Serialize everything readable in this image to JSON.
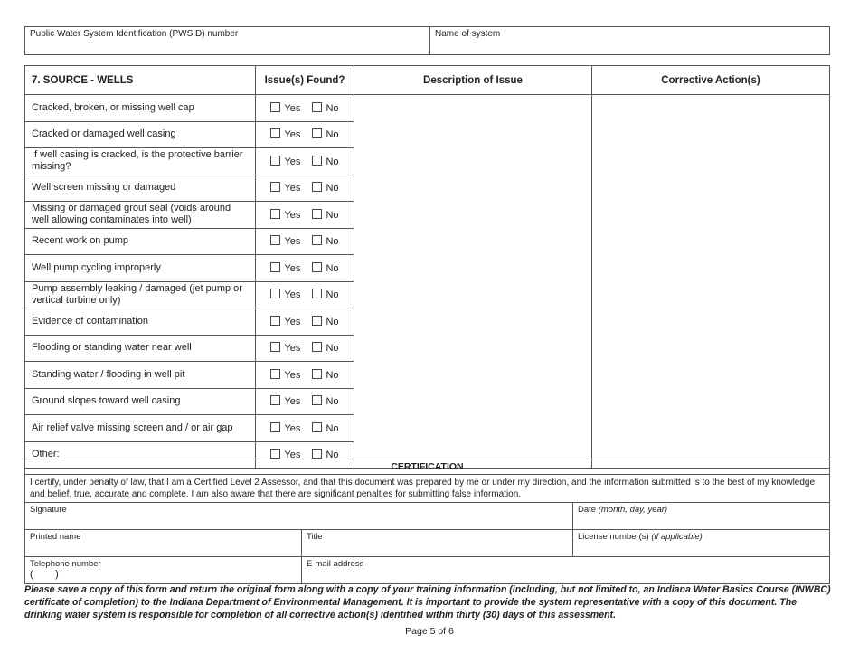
{
  "header_fields": {
    "pwsid_label": "Public Water System Identification (PWSID) number",
    "system_name_label": "Name of system"
  },
  "section": {
    "title": "7.   SOURCE - WELLS",
    "columns": {
      "issues": "Issue(s) Found?",
      "description": "Description of Issue",
      "corrective": "Corrective Action(s)"
    },
    "yes_label": "Yes",
    "no_label": "No",
    "items": [
      "Cracked, broken, or missing well cap",
      "Cracked or damaged well casing",
      "If well casing is cracked, is the protective barrier missing?",
      "Well screen missing or damaged",
      "Missing or damaged grout seal (voids around well allowing contaminates into well)",
      "Recent work on pump",
      "Well pump cycling improperly",
      "Pump assembly leaking / damaged (jet pump or vertical turbine only)",
      "Evidence of contamination",
      "Flooding or standing water near well",
      "Standing water / flooding in well pit",
      "Ground slopes toward well casing",
      "Air relief valve missing screen and / or air gap",
      "Other:"
    ]
  },
  "certification": {
    "title": "CERTIFICATION",
    "statement": "I certify, under penalty of law, that I am a Certified Level 2 Assessor, and that this document was prepared by me or under my direction, and the information submitted is to the best of my knowledge and belief, true, accurate and complete. I am also aware that there are significant penalties for submitting false information.",
    "signature": "Signature",
    "date": "Date",
    "date_hint": "(month, day, year)",
    "printed_name": "Printed name",
    "title_field": "Title",
    "license": "License number(s)",
    "license_hint": "(if applicable)",
    "telephone": "Telephone number",
    "phone_parens": "(        )",
    "email": "E-mail address"
  },
  "footer": "Please save a copy of this form and return the original form along with a copy of your training information (including, but not limited to, an Indiana Water Basics Course (INWBC) certificate of completion) to the Indiana Department of Environmental Management. It is important to provide the system representative with a copy of this document. The drinking water system is responsible for completion of all corrective action(s) identified within thirty (30) days of this assessment.",
  "page_label": "Page 5 of 6"
}
